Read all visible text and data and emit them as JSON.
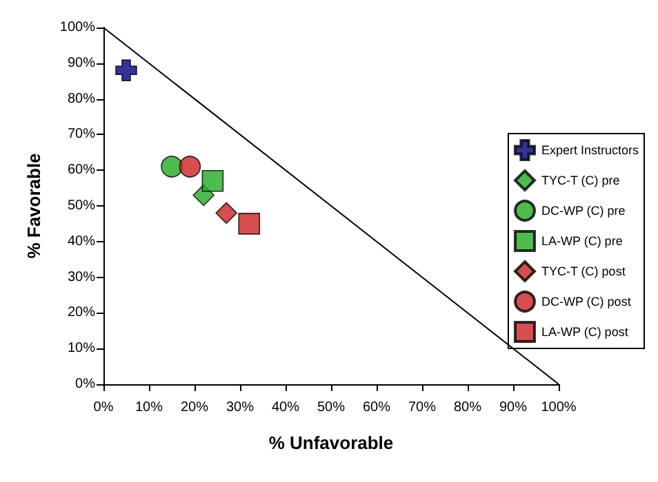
{
  "chart_data": {
    "type": "scatter",
    "xlabel": "% Unfavorable",
    "ylabel": "% Favorable",
    "xlim": [
      0,
      100
    ],
    "ylim": [
      0,
      100
    ],
    "xticks": [
      {
        "value": 0,
        "label": "0%"
      },
      {
        "value": 10,
        "label": "10%"
      },
      {
        "value": 20,
        "label": "20%"
      },
      {
        "value": 30,
        "label": "30%"
      },
      {
        "value": 40,
        "label": "40%"
      },
      {
        "value": 50,
        "label": "50%"
      },
      {
        "value": 60,
        "label": "60%"
      },
      {
        "value": 70,
        "label": "70%"
      },
      {
        "value": 80,
        "label": "80%"
      },
      {
        "value": 90,
        "label": "90%"
      },
      {
        "value": 100,
        "label": "100%"
      }
    ],
    "yticks": [
      {
        "value": 0,
        "label": "0%"
      },
      {
        "value": 10,
        "label": "10%"
      },
      {
        "value": 20,
        "label": "20%"
      },
      {
        "value": 30,
        "label": "30%"
      },
      {
        "value": 40,
        "label": "40%"
      },
      {
        "value": 50,
        "label": "50%"
      },
      {
        "value": 60,
        "label": "60%"
      },
      {
        "value": 70,
        "label": "70%"
      },
      {
        "value": 80,
        "label": "80%"
      },
      {
        "value": 90,
        "label": "90%"
      },
      {
        "value": 100,
        "label": "100%"
      }
    ],
    "grid": false,
    "legend": "right",
    "series": [
      {
        "name": "Expert Instructors",
        "color": "#000080",
        "marker": "cross",
        "x": [
          5
        ],
        "values": [
          88
        ]
      },
      {
        "name": "TYC-T (C) pre",
        "color": "#22aa22",
        "marker": "diamond",
        "x": [
          22
        ],
        "values": [
          53
        ]
      },
      {
        "name": "DC-WP (C) pre",
        "color": "#22aa22",
        "marker": "circle",
        "x": [
          15
        ],
        "values": [
          61
        ]
      },
      {
        "name": "LA-WP (C) pre",
        "color": "#22aa22",
        "marker": "square",
        "x": [
          24
        ],
        "values": [
          57
        ]
      },
      {
        "name": "TYC-T (C) post",
        "color": "#cc2222",
        "marker": "diamond",
        "x": [
          27
        ],
        "values": [
          48
        ]
      },
      {
        "name": "DC-WP (C) post",
        "color": "#cc2222",
        "marker": "circle",
        "x": [
          19
        ],
        "values": [
          61
        ]
      },
      {
        "name": "LA-WP (C) post",
        "color": "#cc2222",
        "marker": "square",
        "x": [
          32
        ],
        "values": [
          45
        ]
      },
      {
        "type": "line",
        "color": "#000000",
        "marker": "none",
        "x": [
          0,
          100
        ],
        "values": [
          100,
          0
        ]
      }
    ]
  }
}
